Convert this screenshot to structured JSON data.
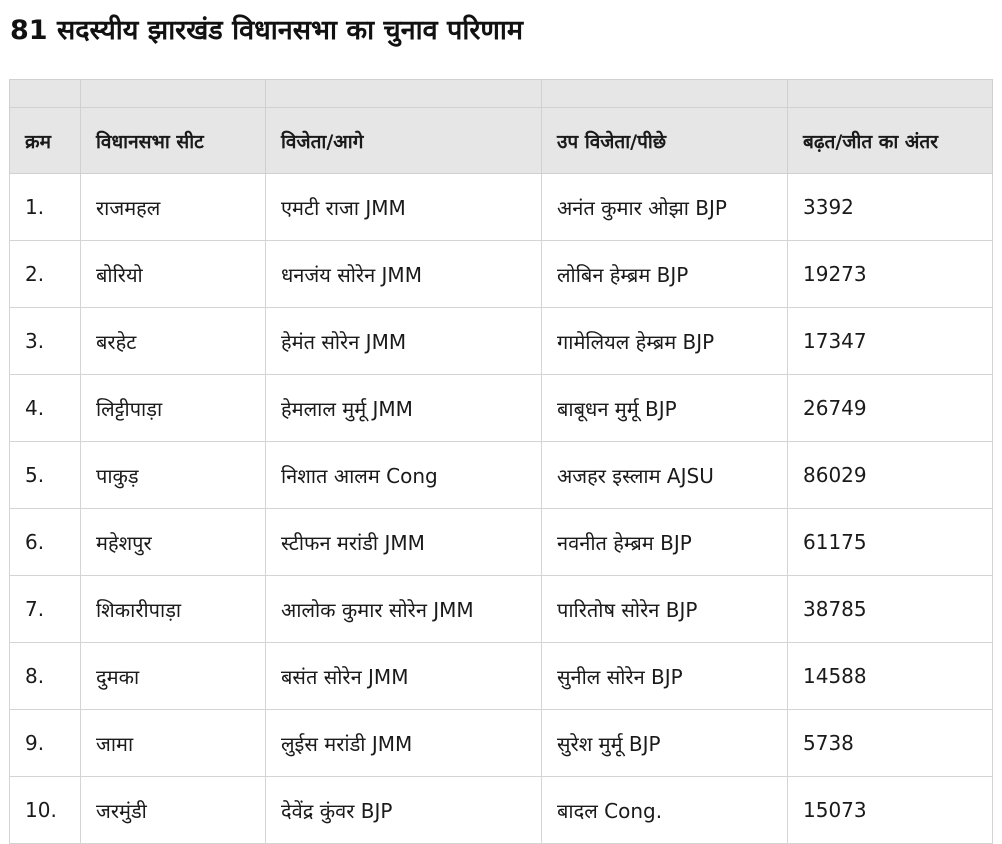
{
  "title": "81 सदस्यीय झारखंड विधानसभा का चुनाव परिणाम",
  "table": {
    "headers": [
      "क्रम",
      "विधानसभा सीट",
      "विजेता/आगे",
      "उप विजेता/पीछे",
      "बढ़त/जीत का अंतर"
    ],
    "rows": [
      [
        "1.",
        "राजमहल",
        "एमटी राजा JMM",
        "अनंत कुमार ओझा BJP",
        "3392"
      ],
      [
        "2.",
        "बोरियो",
        "धनजंय सोरेन JMM",
        "लोबिन हेम्ब्रम BJP",
        "19273"
      ],
      [
        "3.",
        "बरहेट",
        "हेमंत सोरेन JMM",
        "गामेलियल हेम्ब्रम BJP",
        "17347"
      ],
      [
        "4.",
        "लिट्टीपाड़ा",
        "हेमलाल मुर्मू JMM",
        "बाबूधन मुर्मू BJP",
        "26749"
      ],
      [
        "5.",
        "पाकुड़",
        "निशात आलम Cong",
        "अजहर इस्लाम AJSU",
        "86029"
      ],
      [
        "6.",
        "महेशपुर",
        "स्टीफन मरांडी JMM",
        "नवनीत हेम्ब्रम BJP",
        "61175"
      ],
      [
        "7.",
        "शिकारीपाड़ा",
        "आलोक कुमार सोरेन JMM",
        "पारितोष सोरेन BJP",
        "38785"
      ],
      [
        "8.",
        "दुमका",
        "बसंत सोरेन JMM",
        "सुनील सोरेन BJP",
        "14588"
      ],
      [
        "9.",
        "जामा",
        "लुईस मरांडी JMM",
        "सुरेश मुर्मू BJP",
        "5738"
      ],
      [
        "10.",
        "जरमुंडी",
        "देवेंद्र कुंवर BJP",
        "बादल Cong.",
        "15073"
      ]
    ]
  }
}
